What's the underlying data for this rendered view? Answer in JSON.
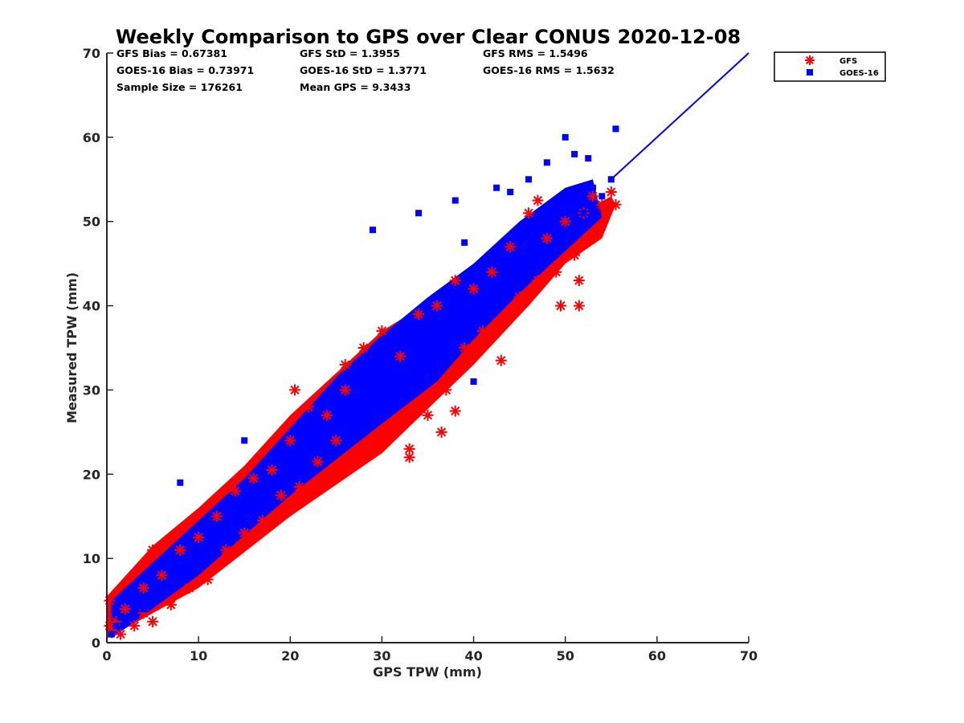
{
  "chart_data": {
    "type": "scatter",
    "title": "Weekly Comparison to GPS over Clear CONUS 2020-12-08",
    "xlabel": "GPS TPW (mm)",
    "ylabel": "Measured TPW (mm)",
    "xlim": [
      0,
      70
    ],
    "ylim": [
      0,
      70
    ],
    "xticks": [
      "0",
      "10",
      "20",
      "30",
      "40",
      "50",
      "60",
      "70"
    ],
    "yticks": [
      "0",
      "10",
      "20",
      "30",
      "40",
      "50",
      "60",
      "70"
    ],
    "grid": false,
    "legend_position": "outside top-right",
    "stats": [
      "GFS Bias = 0.67381",
      "GFS StD = 1.3955",
      "GFS RMS = 1.5496",
      "GOES-16 Bias = 0.73971",
      "GOES-16 StD = 1.3771",
      "GOES-16 RMS = 1.5632",
      "Sample Size = 176261",
      "Mean GPS = 9.3433"
    ],
    "reference_line": {
      "name": "1:1 line",
      "x": [
        55,
        70
      ],
      "y": [
        55,
        70
      ],
      "color": "#0000ff"
    },
    "series": [
      {
        "name": "GFS",
        "marker": "asterisk",
        "color": "#ff0000",
        "x": [
          0.5,
          1,
          1.5,
          2,
          3,
          4,
          5,
          6,
          7,
          8,
          9,
          10,
          11,
          12,
          13,
          14,
          15,
          16,
          17,
          18,
          19,
          20,
          21,
          22,
          23,
          24,
          25,
          26,
          27,
          28,
          29,
          30,
          31,
          32,
          33,
          34,
          35,
          36,
          37,
          38,
          39,
          40,
          41,
          42,
          43,
          44,
          45,
          46,
          47,
          48,
          49,
          50,
          51,
          52,
          53,
          54,
          55,
          55.5,
          49.5,
          51.5,
          51.5,
          5,
          8,
          4,
          20.5,
          26,
          47,
          0.3,
          0.3,
          36.5,
          33,
          38,
          43
        ],
        "y": [
          1.5,
          2.5,
          1,
          4,
          2,
          6.5,
          2.5,
          8,
          4.5,
          11,
          6.5,
          12.5,
          7.5,
          15,
          11,
          18,
          13,
          19.5,
          14.5,
          20.5,
          17.5,
          24,
          18.5,
          28,
          21.5,
          27,
          24,
          33,
          22.5,
          35,
          24,
          37,
          25,
          34,
          23,
          39,
          27,
          40,
          30,
          43,
          35,
          42,
          37,
          44,
          38,
          47,
          41,
          51,
          43,
          48,
          44,
          50,
          46,
          51,
          53,
          52,
          53.5,
          52,
          40,
          43,
          40,
          11,
          11,
          3.5,
          30,
          30,
          52.5,
          5,
          2,
          25,
          22,
          27.5,
          33.5
        ]
      },
      {
        "name": "GOES-16",
        "marker": "square",
        "color": "#0000ff",
        "x": [
          0.5,
          1,
          1.5,
          2,
          3,
          4,
          5,
          6,
          7,
          8,
          9,
          10,
          11,
          12,
          13,
          14,
          15,
          16,
          17,
          18,
          19,
          20,
          21,
          22,
          23,
          24,
          25,
          26,
          27,
          28,
          29,
          30,
          31,
          32,
          33,
          34,
          35,
          36,
          37,
          38,
          39,
          40,
          41,
          42,
          43,
          44,
          45,
          46,
          47,
          48,
          49,
          50,
          51,
          52,
          53,
          54,
          55,
          8,
          15,
          34,
          38,
          42.5,
          44,
          46,
          48,
          50,
          51,
          52.5,
          55.5,
          29,
          39,
          40
        ],
        "y": [
          1,
          2,
          3,
          2.5,
          4,
          4,
          6,
          6,
          8,
          8,
          10,
          10,
          12,
          11.5,
          14,
          13,
          16,
          15,
          18,
          17.5,
          20,
          19,
          22,
          21,
          24,
          23,
          26,
          25,
          28,
          27,
          30,
          29,
          32,
          31,
          34,
          33,
          36,
          35,
          38,
          37,
          40,
          39,
          42,
          41,
          44,
          43,
          46,
          45,
          48,
          46,
          50,
          49,
          52,
          51,
          54,
          53,
          55,
          19,
          24,
          51,
          52.5,
          54,
          53.5,
          55,
          57,
          60,
          58,
          57.5,
          61,
          49,
          47.5,
          31
        ]
      }
    ]
  }
}
